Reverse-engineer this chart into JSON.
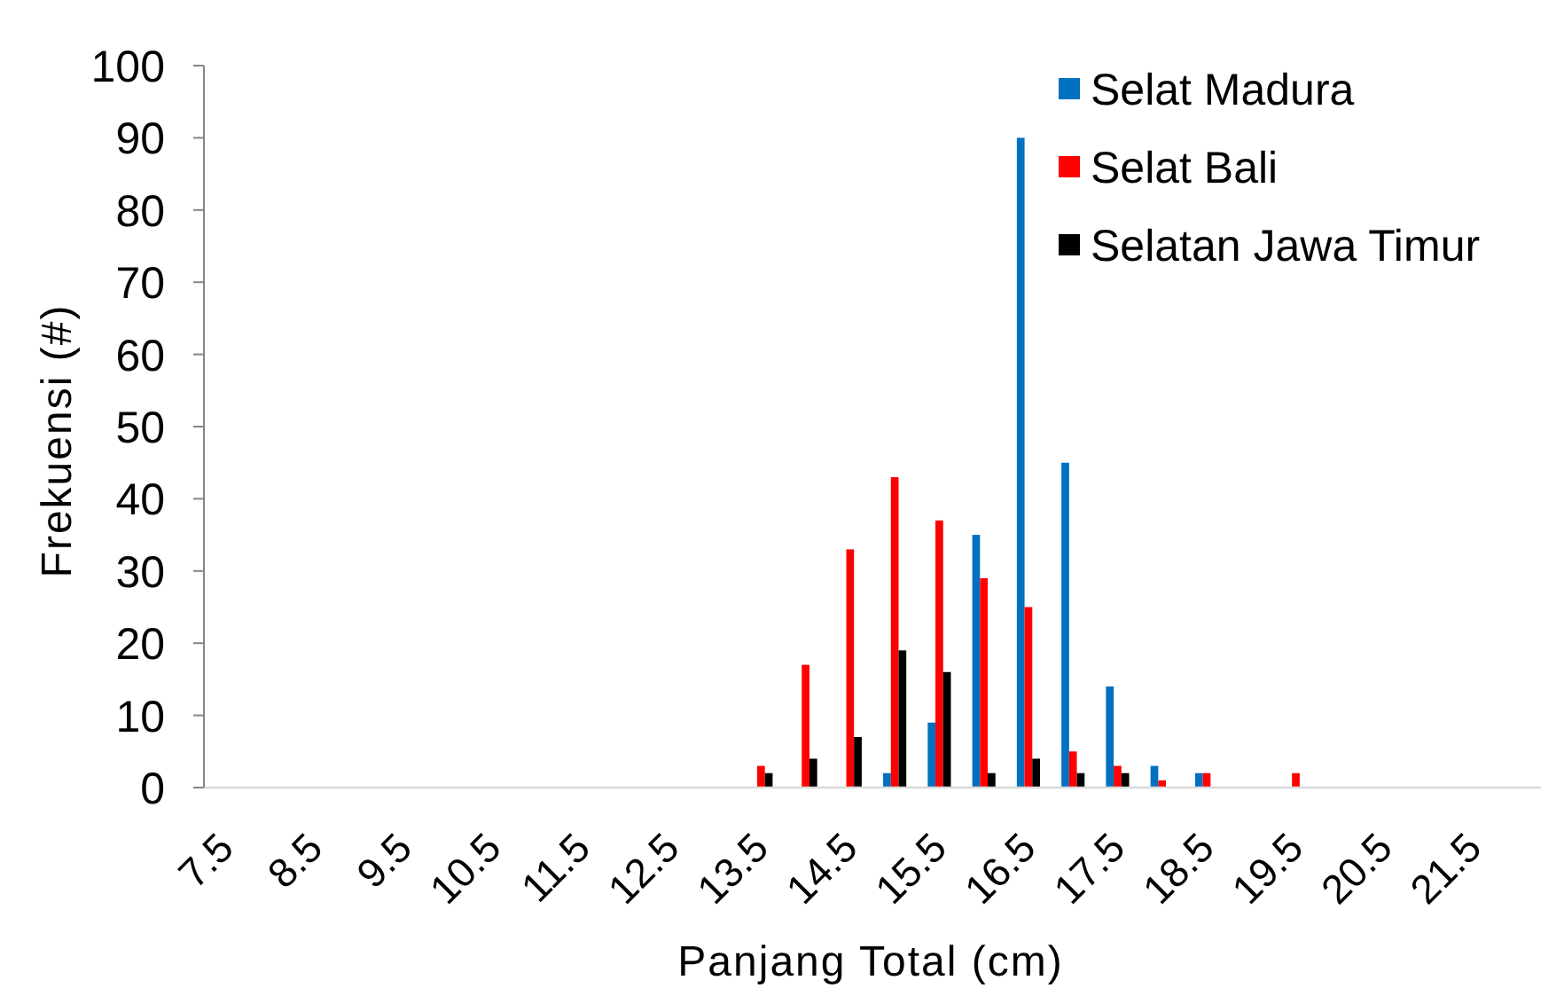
{
  "chart_data": {
    "type": "bar",
    "xlabel": "Panjang Total (cm)",
    "ylabel": "Frekuensi (#)",
    "categories": [
      "7.5",
      null,
      "8.5",
      null,
      "9.5",
      null,
      "10.5",
      null,
      "11.5",
      null,
      "12.5",
      null,
      "13.5",
      null,
      "14.5",
      null,
      "15.5",
      null,
      "16.5",
      null,
      "17.5",
      null,
      "18.5",
      null,
      "19.5",
      null,
      "20.5",
      null,
      "21.5",
      null
    ],
    "series": [
      {
        "name": "Selat Madura",
        "color": "#0070c0",
        "values": [
          0,
          0,
          0,
          0,
          0,
          0,
          0,
          0,
          0,
          0,
          0,
          0,
          0,
          0,
          0,
          2,
          9,
          35,
          90,
          45,
          14,
          3,
          2,
          0,
          0,
          0,
          0,
          0,
          0,
          0
        ]
      },
      {
        "name": "Selat Bali",
        "color": "#ff0000",
        "values": [
          0,
          0,
          0,
          0,
          0,
          0,
          0,
          0,
          0,
          0,
          0,
          0,
          3,
          17,
          33,
          43,
          37,
          29,
          25,
          5,
          3,
          1,
          2,
          0,
          2,
          0,
          0,
          0,
          0,
          0
        ]
      },
      {
        "name": "Selatan Jawa Timur",
        "color": "#000000",
        "values": [
          0,
          0,
          0,
          0,
          0,
          0,
          0,
          0,
          0,
          0,
          0,
          0,
          2,
          4,
          7,
          19,
          16,
          2,
          4,
          2,
          2,
          0,
          0,
          0,
          0,
          0,
          0,
          0,
          0,
          0
        ]
      }
    ],
    "ylim": [
      0,
      100
    ],
    "yticks": [
      0,
      10,
      20,
      30,
      40,
      50,
      60,
      70,
      80,
      90,
      100
    ],
    "legend": "top right"
  }
}
